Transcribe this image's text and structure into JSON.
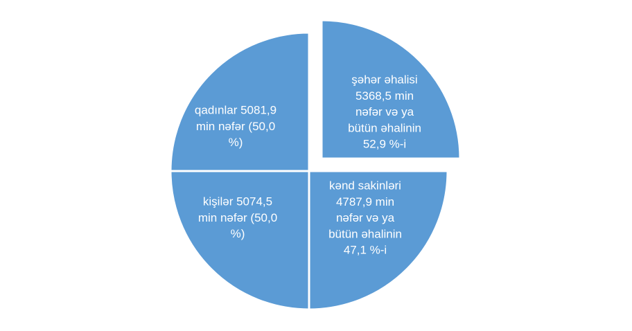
{
  "segments": [
    {
      "lines": [
        "qadınlar 5081,9",
        "min nəfər (50,0",
        "%)"
      ]
    },
    {
      "lines": [
        "şəhər əhalisi",
        "5368,5 min",
        "nəfər və ya",
        "bütün əhalinin",
        "52,9 %-i"
      ]
    },
    {
      "lines": [
        "kənd sakinləri",
        "4787,9 min",
        "nəfər və ya",
        "bütün əhalinin",
        "47,1 %-i"
      ]
    },
    {
      "lines": [
        "kişilər 5074,5",
        "min nəfər (50,0",
        "%)"
      ]
    }
  ]
}
